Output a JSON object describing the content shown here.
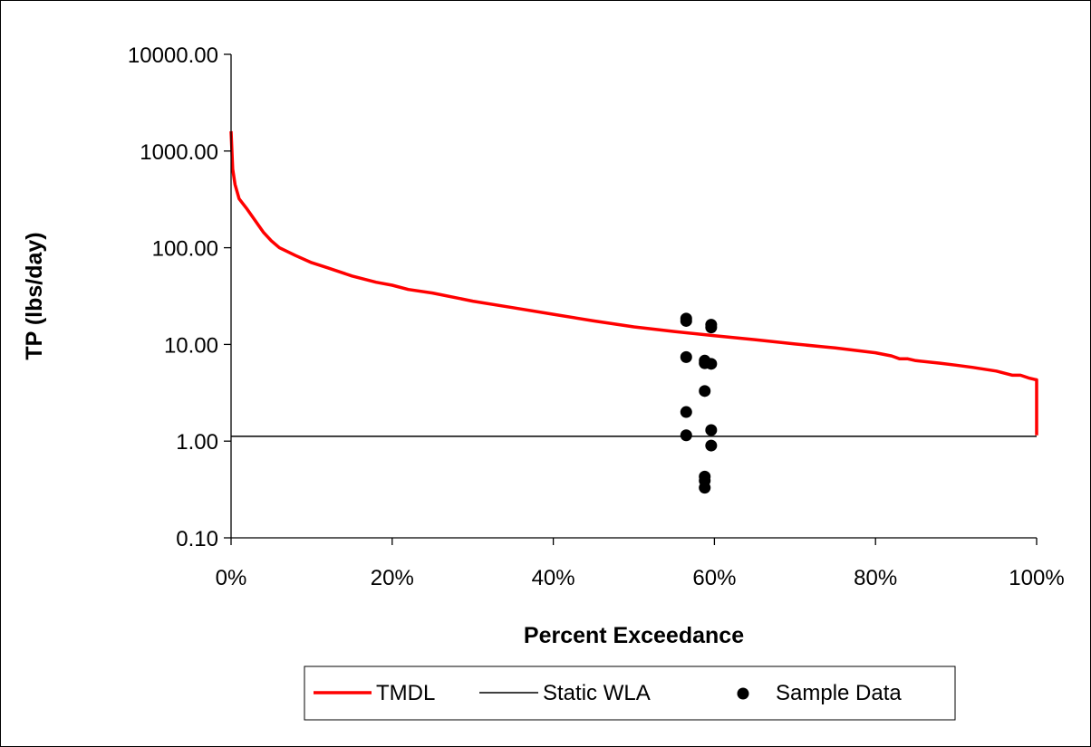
{
  "chart_data": {
    "type": "line",
    "title": "",
    "xlabel": "Percent Exceedance",
    "ylabel": "TP  (lbs/day)",
    "xscale": "linear",
    "yscale": "log",
    "xlim": [
      0,
      100
    ],
    "ylim": [
      0.1,
      10000
    ],
    "x_ticks": [
      0,
      20,
      40,
      60,
      80,
      100
    ],
    "x_tick_labels": [
      "0%",
      "20%",
      "40%",
      "60%",
      "80%",
      "100%"
    ],
    "y_ticks": [
      0.1,
      1,
      10,
      100,
      1000,
      10000
    ],
    "y_tick_labels": [
      "0.10",
      "1.00",
      "10.00",
      "100.00",
      "1000.00",
      "10000.00"
    ],
    "grid": false,
    "legend_position": "bottom",
    "series": [
      {
        "name": "TMDL",
        "kind": "line",
        "color": "#ff0000",
        "points": [
          [
            0,
            1600
          ],
          [
            0.2,
            650
          ],
          [
            0.5,
            450
          ],
          [
            1,
            320
          ],
          [
            2,
            250
          ],
          [
            3,
            190
          ],
          [
            4,
            145
          ],
          [
            5,
            118
          ],
          [
            6,
            100
          ],
          [
            8,
            83
          ],
          [
            10,
            70
          ],
          [
            12,
            62
          ],
          [
            15,
            51
          ],
          [
            18,
            44
          ],
          [
            20,
            41
          ],
          [
            22,
            37
          ],
          [
            25,
            34
          ],
          [
            30,
            28
          ],
          [
            35,
            24
          ],
          [
            40,
            20.5
          ],
          [
            45,
            17.5
          ],
          [
            50,
            15.2
          ],
          [
            55,
            13.6
          ],
          [
            60,
            12.3
          ],
          [
            65,
            11.2
          ],
          [
            70,
            10.1
          ],
          [
            75,
            9.2
          ],
          [
            80,
            8.2
          ],
          [
            82,
            7.6
          ],
          [
            83,
            7.1
          ],
          [
            84,
            7.1
          ],
          [
            85,
            6.8
          ],
          [
            88,
            6.4
          ],
          [
            90,
            6.1
          ],
          [
            92,
            5.8
          ],
          [
            95,
            5.3
          ],
          [
            97,
            4.8
          ],
          [
            98,
            4.8
          ],
          [
            99,
            4.5
          ],
          [
            100,
            4.3
          ],
          [
            100,
            1.15
          ]
        ]
      },
      {
        "name": "Static WLA",
        "kind": "line",
        "color": "#000000",
        "points": [
          [
            0,
            1.12
          ],
          [
            100,
            1.12
          ]
        ]
      },
      {
        "name": "Sample Data",
        "kind": "scatter",
        "color": "#000000",
        "points": [
          [
            56.5,
            18.5
          ],
          [
            56.5,
            17.5
          ],
          [
            56.5,
            7.4
          ],
          [
            56.5,
            2.0
          ],
          [
            56.5,
            1.15
          ],
          [
            58.8,
            6.8
          ],
          [
            58.8,
            6.4
          ],
          [
            58.8,
            3.3
          ],
          [
            58.8,
            0.43
          ],
          [
            58.8,
            0.39
          ],
          [
            58.8,
            0.33
          ],
          [
            59.6,
            16.0
          ],
          [
            59.6,
            15.0
          ],
          [
            59.6,
            6.3
          ],
          [
            59.6,
            1.3
          ],
          [
            59.6,
            0.9
          ]
        ]
      }
    ]
  }
}
